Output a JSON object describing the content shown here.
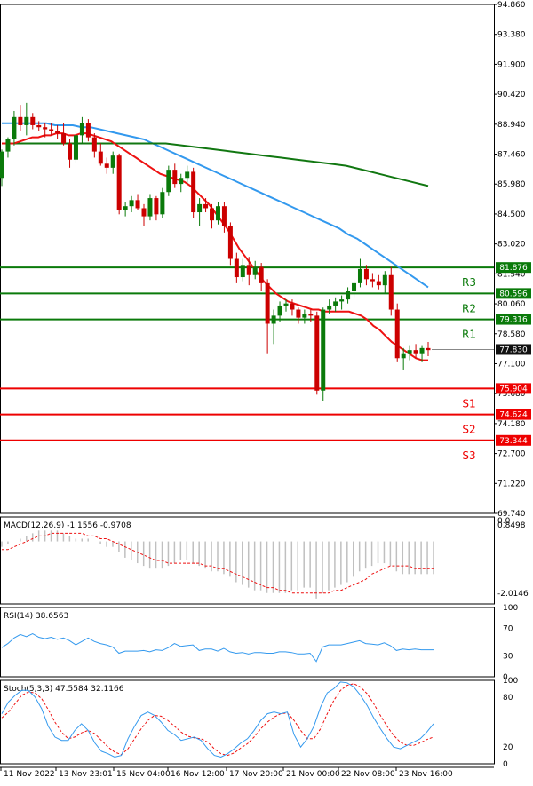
{
  "chart_data": {
    "type": "candlestick",
    "timeframe_labels": [
      "11 Nov 2022",
      "13 Nov 23:01",
      "15 Nov 04:00",
      "16 Nov 12:00",
      "17 Nov 20:00",
      "21 Nov 00:00",
      "22 Nov 08:00",
      "23 Nov 16:00"
    ],
    "price_axis": {
      "ylim": [
        69.74,
        94.86
      ],
      "ticks": [
        "94.860",
        "93.380",
        "91.900",
        "90.420",
        "88.940",
        "87.460",
        "85.980",
        "84.500",
        "83.020",
        "81.540",
        "80.060",
        "78.580",
        "77.100",
        "75.680",
        "74.180",
        "72.700",
        "71.220",
        "69.740"
      ]
    },
    "last_price": {
      "label": "77.830",
      "value": 77.83
    },
    "levels": [
      {
        "name": "R3",
        "value": 81.876,
        "label": "81.876",
        "color": "#0a7a0a"
      },
      {
        "name": "R2",
        "value": 80.596,
        "label": "80.596",
        "color": "#0a7a0a"
      },
      {
        "name": "R1",
        "value": 79.316,
        "label": "79.316",
        "color": "#0a7a0a"
      },
      {
        "name": "S1",
        "value": 75.904,
        "label": "75.904",
        "color": "#ee0000"
      },
      {
        "name": "S2",
        "value": 74.624,
        "label": "74.624",
        "color": "#ee0000"
      },
      {
        "name": "S3",
        "value": 73.344,
        "label": "73.344",
        "color": "#ee0000"
      }
    ],
    "candles": [
      [
        86.3,
        87.7,
        85.9,
        87.6
      ],
      [
        87.6,
        88.3,
        87.3,
        88.2
      ],
      [
        88.2,
        89.6,
        87.9,
        89.3
      ],
      [
        89.3,
        89.9,
        88.6,
        88.9
      ],
      [
        88.9,
        90.0,
        88.4,
        89.3
      ],
      [
        89.3,
        89.5,
        88.7,
        88.9
      ],
      [
        88.9,
        89.1,
        88.6,
        88.8
      ],
      [
        88.8,
        89.0,
        88.3,
        88.7
      ],
      [
        88.7,
        89.0,
        88.4,
        88.6
      ],
      [
        88.6,
        88.9,
        88.2,
        88.5
      ],
      [
        88.5,
        89.0,
        87.9,
        88.0
      ],
      [
        88.0,
        88.2,
        86.8,
        87.2
      ],
      [
        87.2,
        88.6,
        87.0,
        88.4
      ],
      [
        88.4,
        89.3,
        88.0,
        89.0
      ],
      [
        89.0,
        89.2,
        88.1,
        88.3
      ],
      [
        88.3,
        88.5,
        87.3,
        87.6
      ],
      [
        87.6,
        88.0,
        86.9,
        87.0
      ],
      [
        87.0,
        87.3,
        86.5,
        86.8
      ],
      [
        86.8,
        87.6,
        86.5,
        87.4
      ],
      [
        87.4,
        87.5,
        84.5,
        84.7
      ],
      [
        84.7,
        85.1,
        84.4,
        84.9
      ],
      [
        84.9,
        85.4,
        84.6,
        85.2
      ],
      [
        85.2,
        85.5,
        84.7,
        84.8
      ],
      [
        84.8,
        85.0,
        83.9,
        84.4
      ],
      [
        84.4,
        85.5,
        84.2,
        85.3
      ],
      [
        85.3,
        85.4,
        84.2,
        84.5
      ],
      [
        84.5,
        85.8,
        84.3,
        85.6
      ],
      [
        85.6,
        86.9,
        85.4,
        86.7
      ],
      [
        86.7,
        87.0,
        85.8,
        86.0
      ],
      [
        86.0,
        86.5,
        85.6,
        86.3
      ],
      [
        86.3,
        86.9,
        86.0,
        86.6
      ],
      [
        86.6,
        86.8,
        84.3,
        84.6
      ],
      [
        84.6,
        85.3,
        83.9,
        85.0
      ],
      [
        85.0,
        85.3,
        84.6,
        84.8
      ],
      [
        84.8,
        85.0,
        83.8,
        84.2
      ],
      [
        84.2,
        85.1,
        84.0,
        84.9
      ],
      [
        84.9,
        85.1,
        83.6,
        83.9
      ],
      [
        83.9,
        84.1,
        82.0,
        82.3
      ],
      [
        82.3,
        82.6,
        81.1,
        81.4
      ],
      [
        81.4,
        82.3,
        81.2,
        82.0
      ],
      [
        82.0,
        82.4,
        81.0,
        81.5
      ],
      [
        81.5,
        82.2,
        81.3,
        81.9
      ],
      [
        81.9,
        82.1,
        80.7,
        81.1
      ],
      [
        81.1,
        81.3,
        77.6,
        79.1
      ],
      [
        79.1,
        79.8,
        78.1,
        79.5
      ],
      [
        79.5,
        80.2,
        79.2,
        80.0
      ],
      [
        80.0,
        80.3,
        79.7,
        80.1
      ],
      [
        80.1,
        80.3,
        79.5,
        79.8
      ],
      [
        79.8,
        79.9,
        79.1,
        79.4
      ],
      [
        79.4,
        79.8,
        79.1,
        79.6
      ],
      [
        79.6,
        79.8,
        79.2,
        79.5
      ],
      [
        79.5,
        79.7,
        75.6,
        75.8
      ],
      [
        75.8,
        79.9,
        75.3,
        79.8
      ],
      [
        79.8,
        80.3,
        79.6,
        80.0
      ],
      [
        80.0,
        80.4,
        79.7,
        80.2
      ],
      [
        80.2,
        80.5,
        79.8,
        80.3
      ],
      [
        80.3,
        80.9,
        80.1,
        80.7
      ],
      [
        80.7,
        81.3,
        80.4,
        81.1
      ],
      [
        81.1,
        82.3,
        80.9,
        81.8
      ],
      [
        81.8,
        82.0,
        81.0,
        81.3
      ],
      [
        81.3,
        81.6,
        80.9,
        81.2
      ],
      [
        81.2,
        81.5,
        80.8,
        81.0
      ],
      [
        81.0,
        81.7,
        80.6,
        81.5
      ],
      [
        81.5,
        81.9,
        79.5,
        79.8
      ],
      [
        79.8,
        80.1,
        77.2,
        77.4
      ],
      [
        77.4,
        77.9,
        76.8,
        77.6
      ],
      [
        77.6,
        78.0,
        77.3,
        77.8
      ],
      [
        77.8,
        78.1,
        77.4,
        77.6
      ],
      [
        77.6,
        78.0,
        77.2,
        77.9
      ],
      [
        77.9,
        78.2,
        77.5,
        77.8
      ]
    ],
    "ma_fast": [
      88.0,
      88.0,
      88.0,
      88.1,
      88.2,
      88.3,
      88.3,
      88.4,
      88.4,
      88.5,
      88.5,
      88.4,
      88.4,
      88.5,
      88.5,
      88.4,
      88.3,
      88.2,
      88.1,
      87.9,
      87.7,
      87.5,
      87.3,
      87.1,
      86.9,
      86.7,
      86.5,
      86.4,
      86.3,
      86.2,
      86.1,
      85.9,
      85.6,
      85.3,
      85.0,
      84.6,
      84.2,
      83.8,
      83.3,
      82.8,
      82.4,
      82.0,
      81.6,
      81.2,
      80.9,
      80.6,
      80.4,
      80.2,
      80.1,
      80.0,
      79.9,
      79.8,
      79.8,
      79.7,
      79.7,
      79.7,
      79.7,
      79.7,
      79.6,
      79.5,
      79.3,
      79.0,
      78.8,
      78.5,
      78.2,
      78.0,
      77.8,
      77.6,
      77.4,
      77.3,
      77.3
    ],
    "ma_mid": [
      89.0,
      89.0,
      89.0,
      89.0,
      89.0,
      89.0,
      88.9,
      88.9,
      88.9,
      88.8,
      88.8,
      88.7,
      88.6,
      88.5,
      88.4,
      88.3,
      88.2,
      88.0,
      87.8,
      87.6,
      87.4,
      87.2,
      87.0,
      86.8,
      86.6,
      86.4,
      86.2,
      86.0,
      85.8,
      85.6,
      85.4,
      85.2,
      85.0,
      84.8,
      84.6,
      84.4,
      84.2,
      84.0,
      83.8,
      83.5,
      83.3,
      83.0,
      82.7,
      82.4,
      82.1,
      81.8,
      81.5,
      81.2,
      80.9
    ],
    "ma_slow": [
      88.0,
      88.0,
      88.0,
      88.0,
      88.0,
      88.0,
      88.0,
      88.0,
      88.0,
      88.0,
      88.0,
      87.9,
      87.8,
      87.7,
      87.6,
      87.5,
      87.4,
      87.3,
      87.2,
      87.1,
      87.0,
      86.9,
      86.7,
      86.5,
      86.3,
      86.1,
      85.9
    ],
    "macd": {
      "title": "MACD(12,26,9) -1.1556 -0.9708",
      "ticks": [
        "0.0",
        "0.8498",
        "-2.0146"
      ],
      "ylim": [
        -2.3,
        0.9
      ],
      "hist": [
        -0.2,
        -0.1,
        0.0,
        0.1,
        0.2,
        0.3,
        0.4,
        0.4,
        0.4,
        0.4,
        0.3,
        0.2,
        0.1,
        0.1,
        0.1,
        0.0,
        -0.1,
        -0.2,
        -0.2,
        -0.4,
        -0.6,
        -0.7,
        -0.8,
        -0.9,
        -1.0,
        -1.0,
        -1.0,
        -0.9,
        -0.8,
        -0.7,
        -0.7,
        -0.8,
        -0.9,
        -1.0,
        -1.1,
        -1.1,
        -1.2,
        -1.3,
        -1.5,
        -1.6,
        -1.7,
        -1.8,
        -1.8,
        -1.9,
        -1.9,
        -1.9,
        -1.9,
        -1.8,
        -1.8,
        -1.7,
        -1.7,
        -2.1,
        -1.9,
        -1.8,
        -1.7,
        -1.6,
        -1.5,
        -1.3,
        -1.1,
        -1.0,
        -0.9,
        -0.8,
        -0.8,
        -0.9,
        -1.1,
        -1.2,
        -1.2,
        -1.2,
        -1.2,
        -1.2,
        -1.2
      ],
      "signal": [
        -0.3,
        -0.3,
        -0.2,
        -0.1,
        0.0,
        0.1,
        0.2,
        0.2,
        0.3,
        0.3,
        0.3,
        0.3,
        0.3,
        0.3,
        0.2,
        0.2,
        0.1,
        0.1,
        0.0,
        -0.1,
        -0.2,
        -0.3,
        -0.4,
        -0.5,
        -0.6,
        -0.7,
        -0.7,
        -0.8,
        -0.8,
        -0.8,
        -0.8,
        -0.8,
        -0.8,
        -0.9,
        -0.9,
        -1.0,
        -1.0,
        -1.1,
        -1.2,
        -1.3,
        -1.4,
        -1.5,
        -1.6,
        -1.7,
        -1.7,
        -1.8,
        -1.8,
        -1.9,
        -1.9,
        -1.9,
        -1.9,
        -1.9,
        -1.9,
        -1.9,
        -1.8,
        -1.8,
        -1.7,
        -1.6,
        -1.5,
        -1.4,
        -1.2,
        -1.1,
        -1.0,
        -0.9,
        -0.9,
        -0.9,
        -0.9,
        -1.0,
        -1.0,
        -1.0,
        -1.0
      ]
    },
    "rsi": {
      "title": "RSI(14) 38.6563",
      "ticks": [
        "100",
        "70",
        "30",
        "0"
      ],
      "tick_values": [
        100,
        70,
        30,
        0
      ],
      "ylim": [
        0,
        100
      ],
      "values": [
        42,
        48,
        56,
        61,
        58,
        62,
        57,
        55,
        57,
        54,
        56,
        52,
        46,
        51,
        56,
        51,
        48,
        46,
        43,
        34,
        37,
        37,
        37,
        38,
        36,
        39,
        38,
        42,
        48,
        44,
        45,
        46,
        38,
        40,
        40,
        37,
        41,
        36,
        34,
        35,
        33,
        35,
        35,
        34,
        34,
        36,
        36,
        35,
        33,
        33,
        34,
        22,
        43,
        46,
        46,
        46,
        48,
        50,
        52,
        48,
        47,
        46,
        49,
        45,
        38,
        40,
        39,
        40,
        39,
        39,
        39
      ]
    },
    "stoch": {
      "title": "Stoch(5,3,3) 47.5584 32.1166",
      "ticks": [
        "100",
        "80",
        "20",
        "0"
      ],
      "tick_values": [
        100,
        80,
        20,
        0
      ],
      "ylim": [
        0,
        100
      ],
      "k": [
        60,
        74,
        82,
        88,
        88,
        80,
        66,
        45,
        32,
        28,
        28,
        40,
        48,
        40,
        25,
        15,
        12,
        8,
        10,
        30,
        45,
        58,
        62,
        58,
        50,
        40,
        35,
        28,
        30,
        32,
        28,
        18,
        10,
        8,
        12,
        18,
        25,
        30,
        40,
        52,
        60,
        62,
        60,
        62,
        35,
        20,
        30,
        45,
        68,
        85,
        90,
        98,
        97,
        92,
        82,
        70,
        55,
        42,
        30,
        20,
        18,
        22,
        26,
        30,
        38,
        48
      ],
      "d": [
        55,
        62,
        72,
        82,
        86,
        85,
        78,
        65,
        50,
        38,
        30,
        32,
        37,
        40,
        36,
        28,
        20,
        14,
        11,
        18,
        30,
        42,
        52,
        58,
        57,
        52,
        45,
        38,
        33,
        31,
        30,
        26,
        18,
        12,
        10,
        13,
        19,
        24,
        32,
        42,
        50,
        56,
        60,
        61,
        52,
        40,
        30,
        30,
        42,
        60,
        76,
        88,
        94,
        96,
        92,
        84,
        72,
        58,
        45,
        34,
        26,
        22,
        22,
        25,
        29,
        32
      ]
    }
  }
}
